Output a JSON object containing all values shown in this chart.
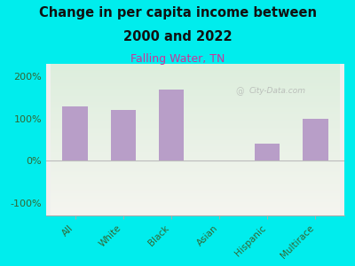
{
  "title_line1": "Change in per capita income between",
  "title_line2": "2000 and 2022",
  "subtitle": "Falling Water, TN",
  "categories": [
    "All",
    "White",
    "Black",
    "Asian",
    "Hispanic",
    "Multirace"
  ],
  "values": [
    130,
    120,
    170,
    0,
    40,
    100
  ],
  "bar_color": "#b89ec8",
  "background_outer": "#00eded",
  "background_inner": "#e8f0e8",
  "title_color": "#111111",
  "subtitle_color": "#cc3399",
  "tick_label_color": "#336633",
  "ylim": [
    -130,
    230
  ],
  "yticks": [
    -100,
    0,
    100,
    200
  ],
  "watermark": "City-Data.com"
}
